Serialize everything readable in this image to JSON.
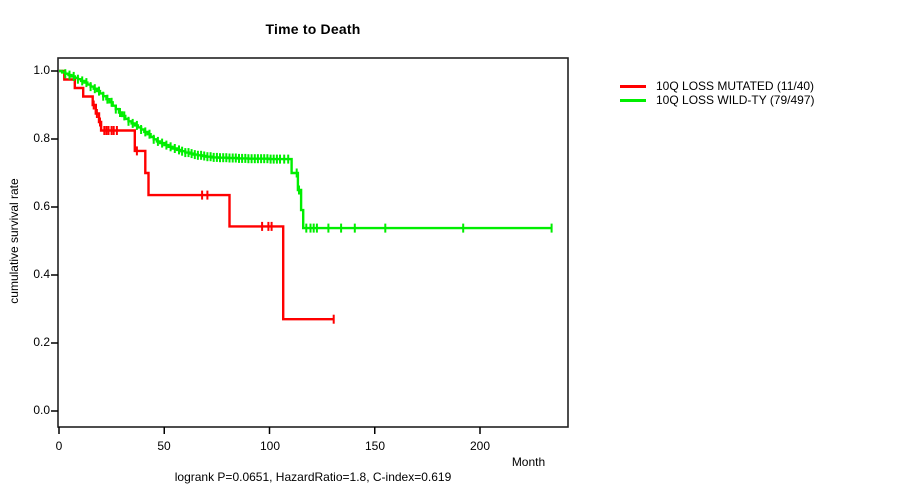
{
  "title": "Time to Death",
  "y_axis": {
    "label": "cumulative survival rate",
    "tick_labels": [
      "1.0",
      "0.8",
      "0.6",
      "0.4",
      "0.2",
      "0.0"
    ]
  },
  "x_axis": {
    "label": "Month",
    "tick_labels": [
      "0",
      "50",
      "100",
      "150",
      "200"
    ]
  },
  "caption": "logrank P=0.0651, HazardRatio=1.8, C-index=0.619",
  "chart_data": {
    "type": "line",
    "subtype": "kaplan-meier-step-curve",
    "title": "Time to Death",
    "xlabel": "Month",
    "ylabel": "cumulative survival rate",
    "xlim": [
      0,
      240
    ],
    "ylim": [
      0.0,
      1.0
    ],
    "xticks": [
      0,
      50,
      100,
      150,
      200
    ],
    "yticks": [
      1.0,
      0.8,
      0.6,
      0.4,
      0.2,
      0.0
    ],
    "grid": false,
    "legend_position": "right-top-outside",
    "stats": {
      "logrank_p": 0.0651,
      "hazard_ratio": 1.8,
      "c_index": 0.619
    },
    "series": [
      {
        "name": "10Q LOSS MUTATED (11/40)",
        "events": 11,
        "n": 40,
        "color": "#ff0000",
        "points": [
          [
            0,
            1.0
          ],
          [
            2.5,
            0.975
          ],
          [
            7.5,
            0.95
          ],
          [
            11.5,
            0.925
          ],
          [
            16,
            0.9
          ],
          [
            17.5,
            0.875
          ],
          [
            19,
            0.85
          ],
          [
            20,
            0.825
          ],
          [
            36,
            0.765
          ],
          [
            41,
            0.7
          ],
          [
            42.5,
            0.635
          ],
          [
            81,
            0.543
          ],
          [
            106.5,
            0.27
          ]
        ],
        "end_month": 130.5,
        "censor_months": [
          16.5,
          18,
          19.5,
          21.5,
          22.5,
          23.5,
          25,
          26,
          27.5,
          37,
          68,
          70.5,
          96.5,
          99.5,
          101,
          130.5
        ]
      },
      {
        "name": "10Q LOSS WILD-TY (79/497)",
        "events": 79,
        "n": 497,
        "color": "#00ee00",
        "points": [
          [
            0,
            1.0
          ],
          [
            1.5,
            0.996
          ],
          [
            3,
            0.992
          ],
          [
            4.5,
            0.988
          ],
          [
            6,
            0.984
          ],
          [
            7.5,
            0.98
          ],
          [
            9,
            0.976
          ],
          [
            10.5,
            0.971
          ],
          [
            12,
            0.966
          ],
          [
            13.5,
            0.96
          ],
          [
            15,
            0.954
          ],
          [
            16.5,
            0.948
          ],
          [
            18,
            0.941
          ],
          [
            19.5,
            0.934
          ],
          [
            21,
            0.926
          ],
          [
            22.5,
            0.917
          ],
          [
            24,
            0.908
          ],
          [
            25.5,
            0.898
          ],
          [
            27,
            0.888
          ],
          [
            28.5,
            0.878
          ],
          [
            30,
            0.868
          ],
          [
            31.5,
            0.859
          ],
          [
            33,
            0.852
          ],
          [
            34.5,
            0.846
          ],
          [
            36,
            0.84
          ],
          [
            37.5,
            0.834
          ],
          [
            39,
            0.828
          ],
          [
            40.5,
            0.821
          ],
          [
            42,
            0.814
          ],
          [
            43.5,
            0.806
          ],
          [
            45,
            0.799
          ],
          [
            46.5,
            0.793
          ],
          [
            48,
            0.788
          ],
          [
            50,
            0.782
          ],
          [
            52,
            0.777
          ],
          [
            54,
            0.772
          ],
          [
            56,
            0.768
          ],
          [
            58,
            0.764
          ],
          [
            60,
            0.76
          ],
          [
            62,
            0.757
          ],
          [
            64,
            0.754
          ],
          [
            66,
            0.752
          ],
          [
            68,
            0.75
          ],
          [
            70,
            0.748
          ],
          [
            73,
            0.746
          ],
          [
            76,
            0.745
          ],
          [
            80,
            0.744
          ],
          [
            85,
            0.743
          ],
          [
            90,
            0.742
          ],
          [
            100,
            0.741
          ],
          [
            110.5,
            0.7
          ],
          [
            113.5,
            0.65
          ],
          [
            115,
            0.591
          ],
          [
            116,
            0.538
          ]
        ],
        "end_month": 234,
        "censor_months": [
          3,
          5,
          7,
          9,
          11,
          13,
          15,
          17,
          19,
          21,
          23,
          25,
          27,
          29,
          31,
          33,
          35,
          37,
          39,
          41,
          43,
          45,
          47,
          49,
          51,
          53,
          55,
          57,
          58.5,
          60,
          61.5,
          63,
          64.5,
          66,
          67.5,
          69,
          70.5,
          72,
          73.5,
          75,
          76.5,
          78,
          79.5,
          81,
          82.5,
          84,
          85.5,
          87,
          88.5,
          90,
          91.5,
          93,
          94.5,
          96,
          97.5,
          99,
          100.5,
          102,
          103.5,
          105,
          107,
          108.9,
          112.9,
          114,
          117.5,
          119.5,
          121,
          122.5,
          128,
          134,
          140.5,
          155,
          192,
          234
        ]
      }
    ]
  }
}
